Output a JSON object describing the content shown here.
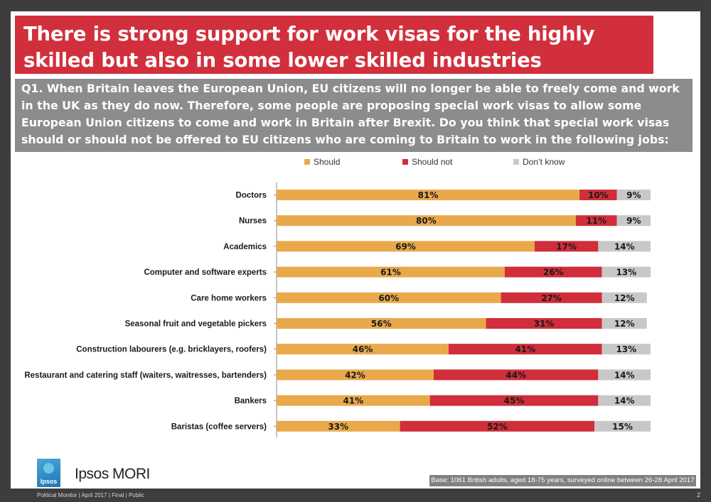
{
  "title": "There is strong support for work visas for the highly skilled but also in some lower skilled industries",
  "question": "Q1. When Britain leaves the European Union, EU citizens will no longer be able to freely come and work in the UK as they do now. Therefore, some people are proposing special work visas to allow some European Union citizens to come and work in Britain after Brexit.  Do you think that special work visas should or should not be offered to EU citizens who are coming to Britain to work in the following jobs:",
  "colors": {
    "should": "#e9a94b",
    "should_not": "#cf2e3a",
    "dont_know": "#c8c8c8"
  },
  "chart_data": {
    "type": "bar",
    "orientation": "horizontal",
    "stacked": true,
    "percent_scale": [
      0,
      100
    ],
    "categories": [
      "Doctors",
      "Nurses",
      "Academics",
      "Computer and software experts",
      "Care home workers",
      "Seasonal fruit and vegetable pickers",
      "Construction labourers (e.g. bricklayers, roofers)",
      "Restaurant and catering staff (waiters, waitresses, bartenders)",
      "Bankers",
      "Baristas (coffee servers)"
    ],
    "series": [
      {
        "name": "Should",
        "values": [
          81,
          80,
          69,
          61,
          60,
          56,
          46,
          42,
          41,
          33
        ]
      },
      {
        "name": "Should not",
        "values": [
          10,
          11,
          17,
          26,
          27,
          31,
          41,
          44,
          45,
          52
        ]
      },
      {
        "name": "Don't know",
        "values": [
          9,
          9,
          14,
          13,
          12,
          12,
          13,
          14,
          14,
          15
        ]
      }
    ],
    "legend_labels": [
      "Should",
      "Should not",
      "Don’t know"
    ],
    "legend_position": "top",
    "value_suffix": "%"
  },
  "logo": {
    "badge_text": "Ipsos",
    "brand": "Ipsos MORI"
  },
  "base_note": "Base: 1061 British adults, aged 18-75 years, surveyed online between 26-28 April 2017",
  "footer": "Political Monitor | April 2017 | Final | Public",
  "page_number": "2"
}
